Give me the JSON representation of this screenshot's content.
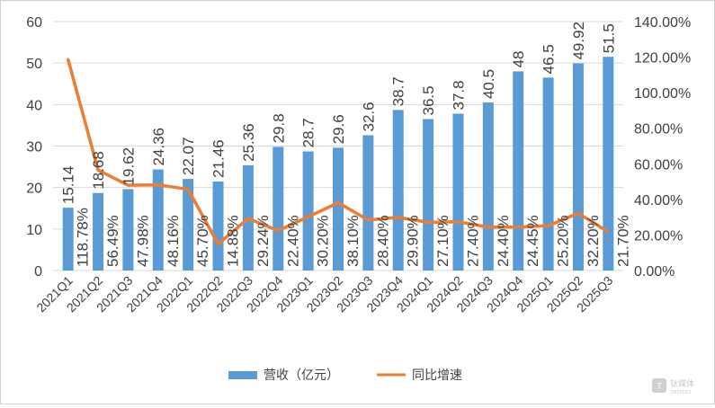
{
  "chart_data": {
    "type": "bar+line",
    "categories": [
      "2021Q1",
      "2021Q2",
      "2021Q3",
      "2021Q4",
      "2022Q1",
      "2022Q2",
      "2022Q3",
      "2022Q4",
      "2023Q1",
      "2023Q2",
      "2023Q3",
      "2023Q4",
      "2024Q1",
      "2024Q2",
      "2024Q3",
      "2024Q4",
      "2025Q1",
      "2025Q2",
      "2025Q3"
    ],
    "series": [
      {
        "name": "营收（亿元）",
        "type": "bar",
        "axis": "left",
        "color": "#5b9bd5",
        "values": [
          15.14,
          18.68,
          19.62,
          24.36,
          22.07,
          21.46,
          25.36,
          29.8,
          28.7,
          29.6,
          32.6,
          38.7,
          36.5,
          37.8,
          40.5,
          48,
          46.5,
          49.92,
          51.5
        ],
        "labels": [
          "15.14",
          "18.68",
          "19.62",
          "24.36",
          "22.07",
          "21.46",
          "25.36",
          "29.8",
          "28.7",
          "29.6",
          "32.6",
          "38.7",
          "36.5",
          "37.8",
          "40.5",
          "48",
          "46.5",
          "49.92",
          "51.5"
        ]
      },
      {
        "name": "同比增速",
        "type": "line",
        "axis": "right",
        "color": "#ed7d31",
        "values": [
          118.78,
          56.49,
          47.98,
          48.16,
          45.7,
          14.88,
          29.24,
          22.4,
          30.2,
          38.1,
          28.4,
          29.9,
          27.1,
          27.4,
          24.4,
          24.45,
          25.2,
          32.2,
          21.7
        ],
        "labels": [
          "118.78%",
          "56.49%",
          "47.98%",
          "48.16%",
          "45.70%",
          "14.88%",
          "29.24%",
          "22.40%",
          "30.20%",
          "38.10%",
          "28.40%",
          "29.90%",
          "27.10%",
          "27.40%",
          "24.40%",
          "24.45%",
          "25.20%",
          "32.20%",
          "21.70%"
        ]
      }
    ],
    "y_left": {
      "range": [
        0,
        60
      ],
      "ticks": [
        "0",
        "10",
        "20",
        "30",
        "40",
        "50",
        "60"
      ]
    },
    "y_right": {
      "range": [
        0,
        140
      ],
      "ticks": [
        "0.00%",
        "20.00%",
        "40.00%",
        "60.00%",
        "80.00%",
        "100.00%",
        "120.00%",
        "140.00%"
      ]
    },
    "grid": true,
    "legend": {
      "placement": "bottom",
      "items": [
        "营收（亿元）",
        "同比增速"
      ]
    }
  },
  "watermark": {
    "text": "钛媒体",
    "subtext": "TMTPOST"
  }
}
